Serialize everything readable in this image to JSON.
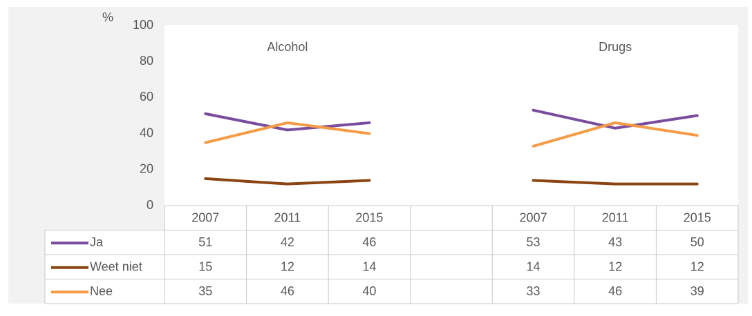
{
  "chart_data": {
    "type": "line",
    "ylabel": "%",
    "annotations": [
      "Alcohol",
      "Drugs"
    ],
    "categories": [
      "2007",
      "2011",
      "2015",
      null,
      "2007",
      "2011",
      "2015"
    ],
    "series": [
      {
        "name": "Ja",
        "color": "#7a4c9e",
        "values": [
          51,
          42,
          46,
          null,
          53,
          43,
          50
        ]
      },
      {
        "name": "Weet niet",
        "color": "#8b4513",
        "values": [
          15,
          12,
          14,
          null,
          14,
          12,
          12
        ]
      },
      {
        "name": "Nee",
        "color": "#f59a45",
        "values": [
          35,
          46,
          40,
          null,
          33,
          46,
          39
        ]
      }
    ],
    "ylim": [
      0,
      100
    ],
    "yticks": [
      0,
      20,
      40,
      60,
      80,
      100
    ],
    "grid": false
  }
}
